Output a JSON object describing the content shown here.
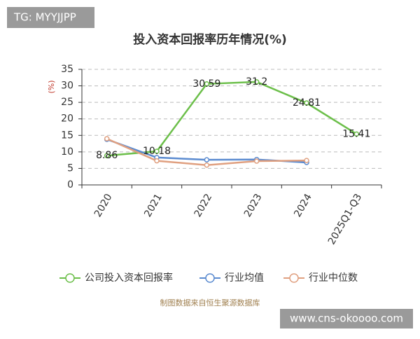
{
  "chart_data": {
    "type": "line",
    "title": "投入资本回报率历年情况(%)",
    "y_label": "(%)",
    "categories": [
      "2020",
      "2021",
      "2022",
      "2023",
      "2024",
      "2025Q1-Q3"
    ],
    "series": [
      {
        "name": "公司投入资本回报率",
        "color": "#6cbf4a",
        "values": [
          8.86,
          10.18,
          30.59,
          31.2,
          24.81,
          15.41
        ],
        "show_labels": true
      },
      {
        "name": "行业均值",
        "color": "#5b8bd0",
        "values": [
          13.8,
          8.3,
          7.6,
          7.7,
          6.8,
          null
        ]
      },
      {
        "name": "行业中位数",
        "color": "#e0a080",
        "values": [
          14.0,
          7.3,
          6.0,
          7.2,
          7.4,
          null
        ]
      }
    ],
    "ylim": [
      0,
      35
    ],
    "yticks": [
      0,
      5,
      10,
      15,
      20,
      25,
      30,
      35
    ],
    "grid": true,
    "watermark": "TG: MYYJJPP",
    "source": "制图数据来自恒生聚源数据库",
    "website": "www.cns-okoooo.com"
  }
}
